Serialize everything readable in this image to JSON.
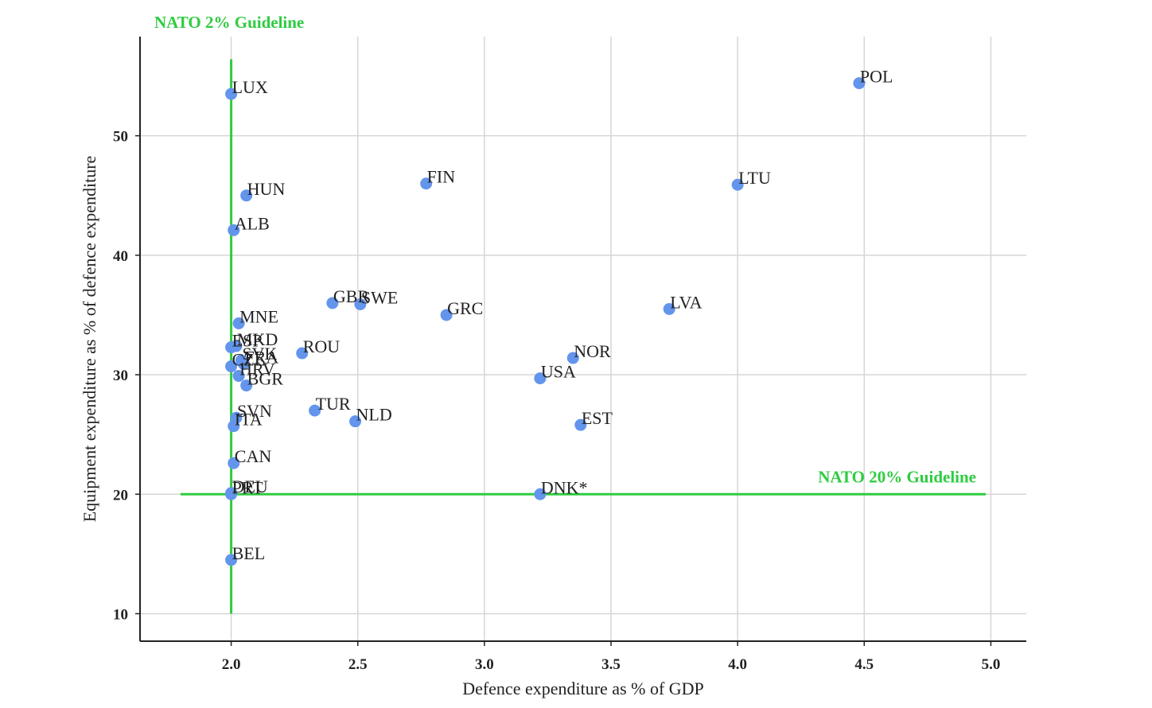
{
  "chart_data": {
    "type": "scatter",
    "title": "",
    "xlabel": "Defence expenditure as % of GDP",
    "ylabel": "Equipment expenditure as % of defence expenditure",
    "xlim": [
      1.64,
      5.14
    ],
    "ylim": [
      7.7,
      58.3
    ],
    "x_ticks": [
      2.0,
      2.5,
      3.0,
      3.5,
      4.0,
      4.5,
      5.0
    ],
    "x_tick_labels": [
      "2.0",
      "2.5",
      "3.0",
      "3.5",
      "4.0",
      "4.5",
      "5.0"
    ],
    "y_ticks": [
      10,
      20,
      30,
      40,
      50
    ],
    "y_tick_labels": [
      "10",
      "20",
      "30",
      "40",
      "50"
    ],
    "grid": true,
    "point_color": "#6495ED",
    "guideline_color": "#2ECC40",
    "guidelines": [
      {
        "label": "NATO 2% Guideline",
        "orientation": "vertical",
        "value": 2.0,
        "from": 10.0,
        "to": 56.4
      },
      {
        "label": "NATO 20% Guideline",
        "orientation": "horizontal",
        "value": 20.0,
        "from": 1.8,
        "to": 4.98
      }
    ],
    "points": [
      {
        "label": "POL",
        "x": 4.48,
        "y": 54.4
      },
      {
        "label": "LUX",
        "x": 2.0,
        "y": 53.5
      },
      {
        "label": "FIN",
        "x": 2.77,
        "y": 46.0
      },
      {
        "label": "LTU",
        "x": 4.0,
        "y": 45.9
      },
      {
        "label": "HUN",
        "x": 2.06,
        "y": 45.0
      },
      {
        "label": "ALB",
        "x": 2.01,
        "y": 42.1
      },
      {
        "label": "GBR",
        "x": 2.4,
        "y": 36.0
      },
      {
        "label": "SWE",
        "x": 2.51,
        "y": 35.9
      },
      {
        "label": "LVA",
        "x": 3.73,
        "y": 35.5
      },
      {
        "label": "GRC",
        "x": 2.85,
        "y": 35.0
      },
      {
        "label": "MNE",
        "x": 2.03,
        "y": 34.3
      },
      {
        "label": "ESP",
        "x": 2.0,
        "y": 32.3
      },
      {
        "label": "MKD",
        "x": 2.02,
        "y": 32.4
      },
      {
        "label": "ROU",
        "x": 2.28,
        "y": 31.8
      },
      {
        "label": "NOR",
        "x": 3.35,
        "y": 31.4
      },
      {
        "label": "SVK",
        "x": 2.04,
        "y": 31.2
      },
      {
        "label": "FRA",
        "x": 2.05,
        "y": 30.9
      },
      {
        "label": "CZE",
        "x": 2.0,
        "y": 30.7
      },
      {
        "label": "HRV",
        "x": 2.03,
        "y": 29.9
      },
      {
        "label": "USA",
        "x": 3.22,
        "y": 29.7
      },
      {
        "label": "BGR",
        "x": 2.06,
        "y": 29.1
      },
      {
        "label": "TUR",
        "x": 2.33,
        "y": 27.0
      },
      {
        "label": "SVN",
        "x": 2.02,
        "y": 26.4
      },
      {
        "label": "NLD",
        "x": 2.49,
        "y": 26.1
      },
      {
        "label": "EST",
        "x": 3.38,
        "y": 25.8
      },
      {
        "label": "ITA",
        "x": 2.01,
        "y": 25.7
      },
      {
        "label": "CAN",
        "x": 2.01,
        "y": 22.6
      },
      {
        "label": "PRT",
        "x": 2.0,
        "y": 20.0
      },
      {
        "label": "DEU",
        "x": 2.0,
        "y": 20.1
      },
      {
        "label": "DNK*",
        "x": 3.22,
        "y": 20.0
      },
      {
        "label": "BEL",
        "x": 2.0,
        "y": 14.5
      }
    ]
  }
}
